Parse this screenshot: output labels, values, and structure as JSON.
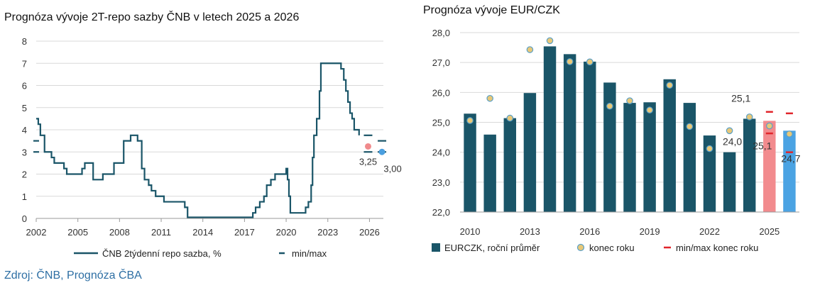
{
  "source": "Zdroj: ČNB, Prognóza ČBA",
  "colors": {
    "line": "#1a5568",
    "bar": "#1a5568",
    "forecast_bar_1": "#f28b8e",
    "forecast_bar_2": "#4ba3e3",
    "dot": "#e8c878",
    "dot_stroke": "#5aa0c8",
    "minmax": "#e1252b",
    "grid": "#d9d9d9",
    "dot_pink": "#f08a8c",
    "dot_blue": "#4a9fe0"
  },
  "chart_data": [
    {
      "type": "line",
      "title": "Prognóza vývoje 2T-repo sazby ČNB v letech 2025 a 2026",
      "ylim": [
        0,
        8
      ],
      "y_ticks": [
        "0",
        "1",
        "2",
        "3",
        "4",
        "5",
        "6",
        "7",
        "8"
      ],
      "x_ticks": [
        "2002",
        "2005",
        "2008",
        "2011",
        "2014",
        "2017",
        "2020",
        "2023",
        "2026"
      ],
      "series": [
        {
          "name": "ČNB 2týdenní repo sazba, %",
          "points": [
            [
              2002.0,
              4.5
            ],
            [
              2002.15,
              4.25
            ],
            [
              2002.3,
              3.75
            ],
            [
              2002.45,
              3.75
            ],
            [
              2002.6,
              3.0
            ],
            [
              2002.85,
              3.0
            ],
            [
              2003.1,
              2.75
            ],
            [
              2003.3,
              2.5
            ],
            [
              2003.8,
              2.5
            ],
            [
              2004.0,
              2.25
            ],
            [
              2004.2,
              2.0
            ],
            [
              2004.6,
              2.0
            ],
            [
              2005.0,
              2.0
            ],
            [
              2005.3,
              2.25
            ],
            [
              2005.5,
              2.5
            ],
            [
              2005.9,
              2.5
            ],
            [
              2006.1,
              1.75
            ],
            [
              2006.6,
              1.75
            ],
            [
              2006.8,
              2.0
            ],
            [
              2007.3,
              2.0
            ],
            [
              2007.6,
              2.5
            ],
            [
              2007.9,
              2.5
            ],
            [
              2008.1,
              2.5
            ],
            [
              2008.3,
              3.5
            ],
            [
              2008.6,
              3.5
            ],
            [
              2008.8,
              3.75
            ],
            [
              2009.1,
              3.75
            ],
            [
              2009.3,
              3.5
            ],
            [
              2009.6,
              2.25
            ],
            [
              2009.8,
              1.75
            ],
            [
              2010.1,
              1.5
            ],
            [
              2010.3,
              1.25
            ],
            [
              2010.6,
              1.0
            ],
            [
              2010.9,
              1.0
            ],
            [
              2011.2,
              0.75
            ],
            [
              2012.0,
              0.75
            ],
            [
              2012.5,
              0.75
            ],
            [
              2012.7,
              0.5
            ],
            [
              2012.9,
              0.05
            ],
            [
              2013.5,
              0.05
            ],
            [
              2016.5,
              0.05
            ],
            [
              2017.4,
              0.05
            ],
            [
              2017.6,
              0.25
            ],
            [
              2017.8,
              0.5
            ],
            [
              2018.1,
              0.75
            ],
            [
              2018.4,
              1.0
            ],
            [
              2018.6,
              1.5
            ],
            [
              2018.9,
              1.75
            ],
            [
              2019.2,
              2.0
            ],
            [
              2019.6,
              2.0
            ],
            [
              2020.0,
              2.25
            ],
            [
              2020.1,
              1.75
            ],
            [
              2020.2,
              1.0
            ],
            [
              2020.3,
              0.25
            ],
            [
              2021.0,
              0.25
            ],
            [
              2021.4,
              0.5
            ],
            [
              2021.6,
              0.75
            ],
            [
              2021.8,
              1.5
            ],
            [
              2021.9,
              2.75
            ],
            [
              2022.0,
              3.75
            ],
            [
              2022.2,
              4.5
            ],
            [
              2022.4,
              5.75
            ],
            [
              2022.5,
              7.0
            ],
            [
              2022.9,
              7.0
            ],
            [
              2023.3,
              7.0
            ],
            [
              2023.8,
              7.0
            ],
            [
              2023.95,
              6.75
            ],
            [
              2024.15,
              6.25
            ],
            [
              2024.3,
              5.75
            ],
            [
              2024.45,
              5.25
            ],
            [
              2024.6,
              4.75
            ],
            [
              2024.75,
              4.5
            ],
            [
              2024.9,
              4.0
            ],
            [
              2025.1,
              4.0
            ],
            [
              2025.25,
              3.75
            ]
          ]
        }
      ],
      "forecast_points": [
        {
          "x": 2025.9,
          "value": 3.25,
          "label": "3,25",
          "color": "#f08a8c"
        },
        {
          "x": 2026.9,
          "value": 3.0,
          "label": "3,00",
          "color": "#4a9fe0"
        }
      ],
      "minmax": [
        {
          "x": 2025.9,
          "min": 3.0,
          "max": 3.75
        },
        {
          "x": 2026.9,
          "min": 3.0,
          "max": 3.5
        }
      ],
      "legend": {
        "line": "ČNB 2týdenní repo sazba, %",
        "minmax": "min/max"
      }
    },
    {
      "type": "bar",
      "title": "Prognóza vývoje EUR/CZK",
      "ylim": [
        22.0,
        28.0
      ],
      "y_ticks": [
        "22,0",
        "23,0",
        "24,0",
        "25,0",
        "26,0",
        "27,0",
        "28,0"
      ],
      "x_ticks": [
        "2010",
        "2013",
        "2016",
        "2019",
        "2022",
        "2025"
      ],
      "categories": [
        2010,
        2011,
        2012,
        2013,
        2014,
        2015,
        2016,
        2017,
        2018,
        2019,
        2020,
        2021,
        2022,
        2023,
        2024,
        2025,
        2026
      ],
      "series": [
        {
          "name": "EURCZK, roční průměr",
          "values": [
            25.29,
            24.59,
            25.14,
            25.98,
            27.54,
            27.28,
            27.03,
            26.33,
            25.65,
            25.67,
            26.44,
            25.65,
            24.56,
            24.0,
            25.12,
            25.05,
            24.72
          ]
        },
        {
          "name": "konec roku",
          "values": [
            25.06,
            25.8,
            25.14,
            27.43,
            27.73,
            27.03,
            27.02,
            25.54,
            25.72,
            25.41,
            26.24,
            24.86,
            24.12,
            24.72,
            25.18,
            24.88,
            24.61
          ]
        }
      ],
      "minmax": [
        {
          "category": 2025,
          "min": 24.63,
          "max": 25.35
        },
        {
          "category": 2026,
          "min": 24.0,
          "max": 25.3
        }
      ],
      "data_labels": [
        {
          "category": 2024,
          "value": 25.12,
          "text": "25,1"
        },
        {
          "category": 2023,
          "value": 24.0,
          "text": "24,0"
        },
        {
          "category": 2025,
          "value": 25.05,
          "text": "25,1"
        },
        {
          "category": 2026,
          "value": 24.72,
          "text": "24,7"
        }
      ],
      "legend": {
        "bars": "EURCZK, roční průměr",
        "dots": "konec roku",
        "minmax": "min/max konec roku"
      }
    }
  ]
}
